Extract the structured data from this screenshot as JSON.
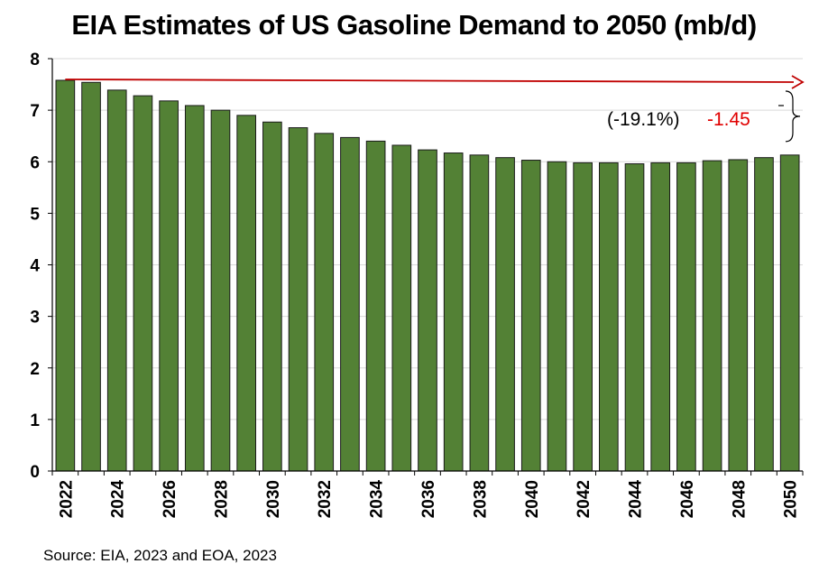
{
  "chart_data": {
    "type": "bar",
    "title": "EIA Estimates of US Gasoline Demand to 2050 (mb/d)",
    "source": "Source: EIA, 2023 and EOA, 2023",
    "categories": [
      "2022",
      "2023",
      "2024",
      "2025",
      "2026",
      "2027",
      "2028",
      "2029",
      "2030",
      "2031",
      "2032",
      "2033",
      "2034",
      "2035",
      "2036",
      "2037",
      "2038",
      "2039",
      "2040",
      "2041",
      "2042",
      "2043",
      "2044",
      "2045",
      "2046",
      "2047",
      "2048",
      "2049",
      "2050"
    ],
    "tick_labels": [
      "2022",
      "",
      "2024",
      "",
      "2026",
      "",
      "2028",
      "",
      "2030",
      "",
      "2032",
      "",
      "2034",
      "",
      "2036",
      "",
      "2038",
      "",
      "2040",
      "",
      "2042",
      "",
      "2044",
      "",
      "2046",
      "",
      "2048",
      "",
      "2050"
    ],
    "values": [
      7.58,
      7.54,
      7.39,
      7.28,
      7.18,
      7.09,
      7.0,
      6.9,
      6.77,
      6.66,
      6.55,
      6.47,
      6.4,
      6.32,
      6.23,
      6.17,
      6.13,
      6.08,
      6.03,
      6.0,
      5.98,
      5.98,
      5.96,
      5.98,
      5.98,
      6.02,
      6.04,
      6.08,
      6.13
    ],
    "ylim": [
      0,
      8
    ],
    "yticks": [
      "0",
      "1",
      "2",
      "3",
      "4",
      "5",
      "6",
      "7",
      "8"
    ],
    "grid": true,
    "bar_color": "#538135",
    "annotation": {
      "percent_label": "(-19.1%)",
      "delta_label": "-1.45",
      "arrow_color": "#c00000",
      "delta_color": "#e00000"
    }
  }
}
